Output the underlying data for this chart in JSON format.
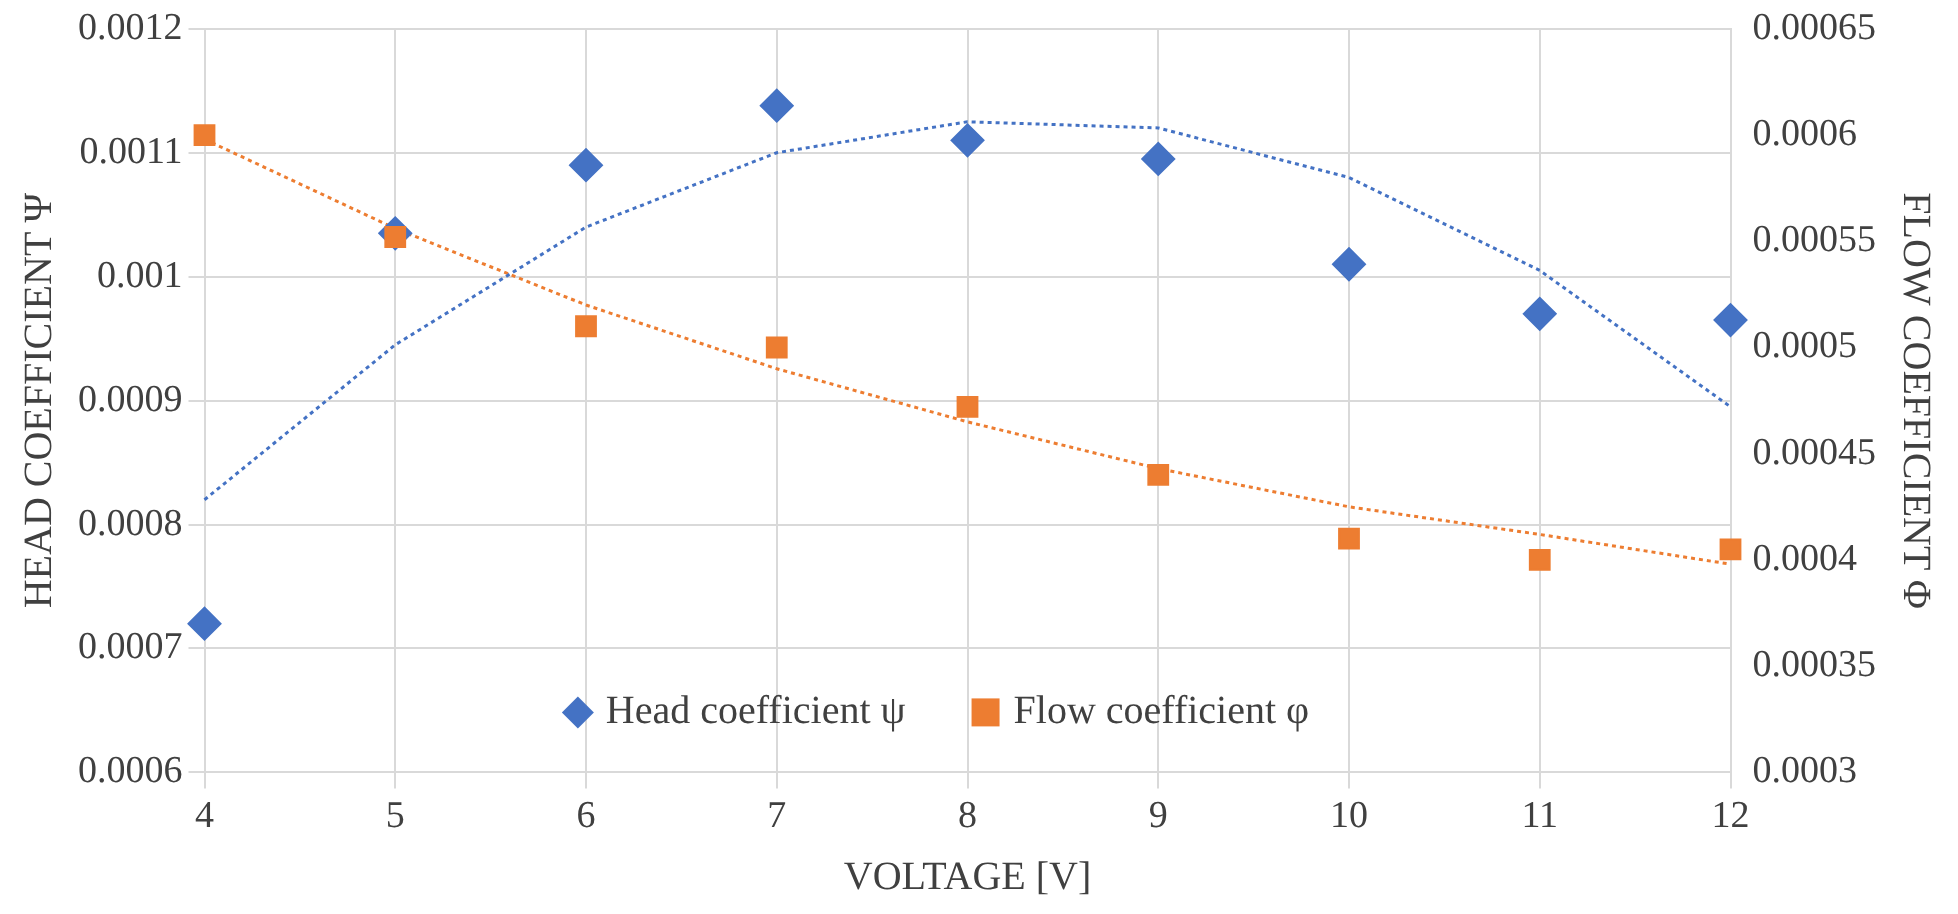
{
  "chart_data": {
    "type": "scatter",
    "xlabel": "VOLTAGE [V]",
    "ylabel": "HEAD COEFFICIENT Ψ",
    "y2label": "FLOW COEFFICIENT Φ",
    "xlim": [
      4,
      12
    ],
    "xticks": [
      4,
      5,
      6,
      7,
      8,
      9,
      10,
      11,
      12
    ],
    "ylim": [
      0.0006,
      0.0012
    ],
    "yticks": [
      0.0006,
      0.0007,
      0.0008,
      0.0009,
      0.001,
      0.0011,
      0.0012
    ],
    "y2lim": [
      0.0003,
      0.00065
    ],
    "y2ticks": [
      0.0003,
      0.00035,
      0.0004,
      0.00045,
      0.0005,
      0.00055,
      0.0006,
      0.00065
    ],
    "grid": true,
    "legend": "bottom",
    "series": [
      {
        "name": "Head coefficient ψ",
        "marker": "diamond",
        "color": "#4472c4",
        "x": [
          4,
          5,
          6,
          7,
          8,
          9,
          10,
          11,
          12
        ],
        "values": [
          0.00072,
          0.001035,
          0.00109,
          0.001138,
          0.00111,
          0.001095,
          0.00101,
          0.00097,
          0.000965
        ]
      },
      {
        "name": "Flow coefficient φ",
        "marker": "square",
        "axis": "y2",
        "color": "#ed7d31",
        "x": [
          4,
          5,
          6,
          7,
          8,
          9,
          10,
          11,
          12
        ],
        "values": [
          0.0006,
          0.000552,
          0.00051,
          0.0005,
          0.000472,
          0.00044,
          0.00041,
          0.0004,
          0.000405
        ]
      },
      {
        "type": "line",
        "line_style": "dotted",
        "marker": "none",
        "color": "#4472c4",
        "x": [
          4,
          5,
          6,
          7,
          8,
          9,
          10,
          11,
          12
        ],
        "values": [
          0.00082,
          0.000945,
          0.00104,
          0.0011,
          0.001125,
          0.00112,
          0.00108,
          0.001005,
          0.000895
        ]
      },
      {
        "type": "line",
        "line_style": "dotted",
        "marker": "none",
        "axis": "y2",
        "color": "#ed7d31",
        "x": [
          4,
          5,
          6,
          7,
          8,
          9,
          10,
          11,
          12
        ],
        "values": [
          0.000598,
          0.000556,
          0.00052,
          0.00049,
          0.000465,
          0.000443,
          0.000425,
          0.000412,
          0.000398
        ]
      }
    ]
  }
}
